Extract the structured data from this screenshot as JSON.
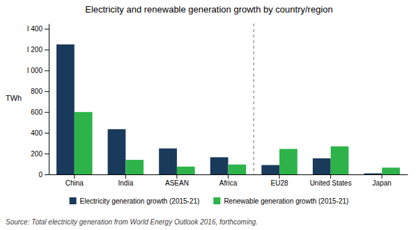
{
  "chart_data": {
    "type": "bar",
    "title": "Electricity and renewable generation growth by country/region",
    "categories": [
      "China",
      "India",
      "ASEAN",
      "Africa",
      "EU28",
      "United States",
      "Japan"
    ],
    "series": [
      {
        "name": "Electricity generation growth (2015-21)",
        "color": "#1a3a5c",
        "values": [
          1250,
          435,
          250,
          165,
          90,
          155,
          10
        ]
      },
      {
        "name": "Renewable generation growth (2015-21)",
        "color": "#2db34a",
        "values": [
          600,
          140,
          75,
          95,
          245,
          270,
          65
        ]
      }
    ],
    "ylabel": "TWh",
    "ylim": [
      0,
      1450
    ],
    "yticks": [
      0,
      200,
      400,
      600,
      800,
      {
        "value": 1000,
        "label": "I 000"
      },
      {
        "value": 1200,
        "label": "I 200"
      },
      {
        "value": 1400,
        "label": "I 400"
      }
    ],
    "annotations": [
      "Source: Total electricity generation from World Energy Outlook 2016, forthcoming."
    ],
    "grid": false,
    "legend": "bottom"
  }
}
